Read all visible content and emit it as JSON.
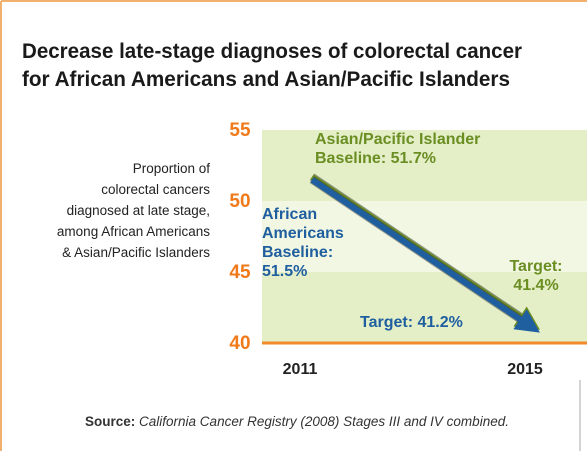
{
  "chart_data": {
    "type": "line",
    "title": [
      "Decrease late-stage diagnoses of colorectal cancer",
      "for African Americans and Asian/Pacific Islanders"
    ],
    "ylabel": [
      "Proportion of",
      "colorectal cancers",
      "diagnosed at late stage,",
      "among African Americans",
      "& Asian/Pacific Islanders"
    ],
    "categories": [
      "2011",
      "2015"
    ],
    "series": [
      {
        "name": "Asian/Pacific Islander",
        "color": "#6b8e23",
        "values": [
          51.7,
          41.4
        ],
        "value_labels": [
          "51.7%",
          "41.4%"
        ]
      },
      {
        "name": "African Americans",
        "color": "#1f5fa0",
        "values": [
          51.5,
          41.2
        ],
        "value_labels": [
          "51.5%",
          "41.2%"
        ]
      }
    ],
    "annotations": {
      "start": "Baseline:",
      "end": "Target:"
    },
    "ylim": [
      40,
      55
    ],
    "yticks": [
      40,
      45,
      50,
      55
    ],
    "source_label": "Source:",
    "source": "California Cancer Registry (2008) Stages III and IV combined."
  }
}
